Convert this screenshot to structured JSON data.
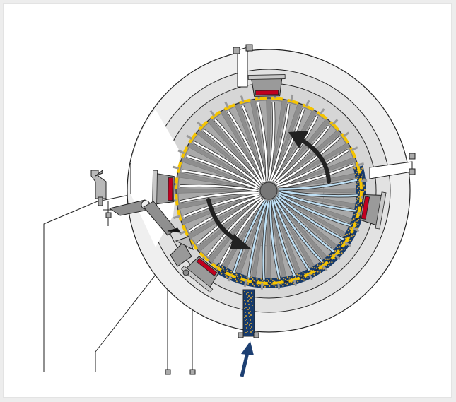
{
  "diagram": {
    "kind": "rotary-machine-cross-section",
    "labels": [],
    "colors": {
      "background": "#ffffff",
      "frame": "#ededed",
      "housing_outer": "#eeeeee",
      "housing_inner": "#e0e0e0",
      "rotor_chamber": "#8e8e8e",
      "cell_fill": "#a9a9a9",
      "rim_band": "#f5c400",
      "seal_accent": "#c1001f",
      "light_channel": "#bfe0f5",
      "material_fill": "#163a6b",
      "material_dots": "#d6a73a",
      "direction_arrow": "#222222",
      "inflow_arrow": "#1d3f72",
      "line": "#222222"
    },
    "rotor": {
      "radial_channel_count": 36,
      "blade_count": 36,
      "rim_tooth_count": 36
    },
    "seal_pads": [
      {
        "name": "top",
        "has_red_seal": true
      },
      {
        "name": "left",
        "has_red_seal": true
      },
      {
        "name": "right",
        "has_red_seal": true
      },
      {
        "name": "bottom-left",
        "has_red_seal": true
      }
    ],
    "arrows": [
      {
        "name": "rotation-arrow-upper",
        "icon": "curved-arrow-icon"
      },
      {
        "name": "rotation-arrow-lower",
        "icon": "curved-arrow-icon"
      },
      {
        "name": "inflow-arrow",
        "icon": "up-arrow-icon"
      }
    ]
  }
}
